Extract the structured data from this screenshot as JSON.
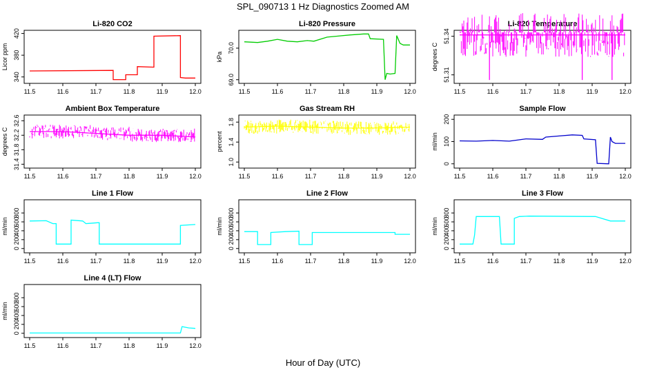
{
  "page": {
    "title": "SPL_090713  1 Hz Diagnostics Zoomed AM",
    "xlabel": "Hour of Day (UTC)"
  },
  "chart_data": [
    {
      "type": "line",
      "title": "Li-820 CO2",
      "ylabel": "Licor ppm",
      "color": "#ff0000",
      "xlim": [
        11.5,
        12.0
      ],
      "ylim": [
        332,
        422
      ],
      "xticks": [
        "11.5",
        "11.6",
        "11.7",
        "11.8",
        "11.9",
        "12.0"
      ],
      "yticks": [
        "340",
        "380",
        "420"
      ],
      "series": [
        {
          "x": [
            11.5,
            11.752,
            11.752,
            11.79,
            11.79,
            11.825,
            11.825,
            11.875,
            11.875,
            11.955,
            11.955,
            11.97,
            12.0
          ],
          "y": [
            351,
            352,
            335,
            335,
            344,
            344,
            359,
            358,
            415,
            416,
            339,
            338,
            338
          ]
        }
      ]
    },
    {
      "type": "line",
      "title": "Li-820 Pressure",
      "ylabel": "kPa",
      "color": "#00cc00",
      "xlim": [
        11.5,
        12.0
      ],
      "ylim": [
        68.95,
        70.5
      ],
      "xticks": [
        "11.5",
        "11.6",
        "11.7",
        "11.8",
        "11.9",
        "12.0"
      ],
      "yticks": [
        "69.0",
        "70.0"
      ],
      "series": [
        {
          "x": [
            11.5,
            11.54,
            11.57,
            11.6,
            11.63,
            11.66,
            11.69,
            11.71,
            11.75,
            11.78,
            11.82,
            11.86,
            11.875,
            11.88,
            11.92,
            11.925,
            11.93,
            11.94,
            11.955,
            11.96,
            11.97,
            11.98,
            12.0
          ],
          "y": [
            70.2,
            70.18,
            70.22,
            70.28,
            70.22,
            70.2,
            70.24,
            70.22,
            70.35,
            70.38,
            70.42,
            70.45,
            70.45,
            70.3,
            70.28,
            69.0,
            69.2,
            69.18,
            69.2,
            70.4,
            70.15,
            70.1,
            70.1
          ]
        }
      ]
    },
    {
      "type": "line",
      "title": "Li-820 Temperature",
      "ylabel": "degrees C",
      "color": "#ff00ff",
      "xlim": [
        11.5,
        12.0
      ],
      "ylim": [
        51.305,
        51.343
      ],
      "xticks": [
        "11.5",
        "11.6",
        "11.7",
        "11.8",
        "11.9",
        "12.0"
      ],
      "yticks": [
        "51.31",
        "51.34"
      ],
      "series": [
        {
          "x": [
            11.5,
            11.59,
            11.59,
            11.59,
            11.87,
            11.87,
            11.87,
            11.96,
            11.96,
            11.96,
            12.0
          ],
          "y": [
            51.341,
            51.341,
            51.306,
            51.341,
            51.341,
            51.306,
            51.341,
            51.341,
            51.306,
            51.341,
            51.341
          ]
        }
      ]
    },
    {
      "type": "line",
      "title": "Ambient Box Temperature",
      "ylabel": "degrees C",
      "color": "#ff00ff",
      "xlim": [
        11.5,
        12.0
      ],
      "ylim": [
        31.35,
        32.7
      ],
      "xticks": [
        "11.5",
        "11.6",
        "11.7",
        "11.8",
        "11.9",
        "12.0"
      ],
      "yticks": [
        "31.4",
        "31.8",
        "32.2",
        "32.6"
      ],
      "series": [
        {
          "x": [
            11.5,
            11.6,
            11.7,
            11.8,
            11.9,
            12.0
          ],
          "y": [
            32.3,
            32.3,
            32.25,
            32.2,
            32.2,
            32.15
          ]
        }
      ]
    },
    {
      "type": "line",
      "title": "Gas Stream RH",
      "ylabel": "percent",
      "color": "#ffff00",
      "xlim": [
        11.5,
        12.0
      ],
      "ylim": [
        0.92,
        1.9
      ],
      "xticks": [
        "11.5",
        "11.6",
        "11.7",
        "11.8",
        "11.9",
        "12.0"
      ],
      "yticks": [
        "1.0",
        "1.4",
        "1.8"
      ],
      "series": [
        {
          "x": [
            11.5,
            11.6,
            11.7,
            11.8,
            11.9,
            12.0
          ],
          "y": [
            1.7,
            1.72,
            1.7,
            1.68,
            1.68,
            1.7
          ]
        }
      ]
    },
    {
      "type": "line",
      "title": "Sample Flow",
      "ylabel": "ml/min",
      "color": "#0000cc",
      "xlim": [
        11.5,
        12.0
      ],
      "ylim": [
        -10,
        210
      ],
      "xticks": [
        "11.5",
        "11.6",
        "11.7",
        "11.8",
        "11.9",
        "12.0"
      ],
      "yticks": [
        "0",
        "100",
        "200"
      ],
      "series": [
        {
          "x": [
            11.5,
            11.55,
            11.6,
            11.65,
            11.7,
            11.75,
            11.76,
            11.8,
            11.84,
            11.87,
            11.875,
            11.91,
            11.915,
            11.95,
            11.955,
            11.96,
            11.97,
            12.0
          ],
          "y": [
            103,
            102,
            105,
            102,
            112,
            110,
            120,
            125,
            130,
            128,
            112,
            108,
            2,
            0,
            120,
            100,
            92,
            92
          ]
        }
      ]
    },
    {
      "type": "line",
      "title": "Line 1 Flow",
      "ylabel": "ml/min",
      "color": "#00ffff",
      "xlim": [
        11.5,
        12.0
      ],
      "ylim": [
        -50,
        1050
      ],
      "xticks": [
        "11.5",
        "11.6",
        "11.7",
        "11.8",
        "11.9",
        "12.0"
      ],
      "yticks": [
        "0",
        "200",
        "400",
        "600",
        "800"
      ],
      "series": [
        {
          "x": [
            11.5,
            11.55,
            11.57,
            11.58,
            11.58,
            11.625,
            11.625,
            11.66,
            11.67,
            11.705,
            11.71,
            11.71,
            11.955,
            11.955,
            12.0
          ],
          "y": [
            620,
            625,
            560,
            560,
            100,
            100,
            640,
            620,
            560,
            580,
            580,
            100,
            100,
            520,
            540
          ]
        }
      ]
    },
    {
      "type": "line",
      "title": "Line 2 Flow",
      "ylabel": "ml/min",
      "color": "#00ffff",
      "xlim": [
        11.5,
        12.0
      ],
      "ylim": [
        -50,
        1050
      ],
      "xticks": [
        "11.5",
        "11.6",
        "11.7",
        "11.8",
        "11.9",
        "12.0"
      ],
      "yticks": [
        "0",
        "200",
        "400",
        "600",
        "800"
      ],
      "series": [
        {
          "x": [
            11.5,
            11.54,
            11.54,
            11.58,
            11.58,
            11.625,
            11.665,
            11.665,
            11.705,
            11.705,
            11.955,
            11.955,
            12.0
          ],
          "y": [
            380,
            380,
            90,
            90,
            360,
            380,
            390,
            90,
            90,
            360,
            360,
            320,
            320
          ]
        }
      ]
    },
    {
      "type": "line",
      "title": "Line 3 Flow",
      "ylabel": "ml/min",
      "color": "#00ffff",
      "xlim": [
        11.5,
        12.0
      ],
      "ylim": [
        -50,
        1050
      ],
      "xticks": [
        "11.5",
        "11.6",
        "11.7",
        "11.8",
        "11.9",
        "12.0"
      ],
      "yticks": [
        "0",
        "200",
        "400",
        "600",
        "800"
      ],
      "series": [
        {
          "x": [
            11.5,
            11.54,
            11.545,
            11.55,
            11.62,
            11.625,
            11.665,
            11.665,
            11.68,
            11.71,
            11.91,
            11.955,
            12.0
          ],
          "y": [
            100,
            100,
            300,
            720,
            720,
            100,
            100,
            680,
            720,
            730,
            720,
            620,
            620
          ]
        }
      ]
    },
    {
      "type": "line",
      "title": "Line 4 (LT) Flow",
      "ylabel": "ml/min",
      "color": "#00ffff",
      "xlim": [
        11.5,
        12.0
      ],
      "ylim": [
        -50,
        1050
      ],
      "xticks": [
        "11.5",
        "11.6",
        "11.7",
        "11.8",
        "11.9",
        "12.0"
      ],
      "yticks": [
        "0",
        "200",
        "400",
        "600",
        "800"
      ],
      "series": [
        {
          "x": [
            11.5,
            11.955,
            11.96,
            11.98,
            12.0
          ],
          "y": [
            5,
            5,
            150,
            120,
            110
          ]
        }
      ]
    }
  ]
}
